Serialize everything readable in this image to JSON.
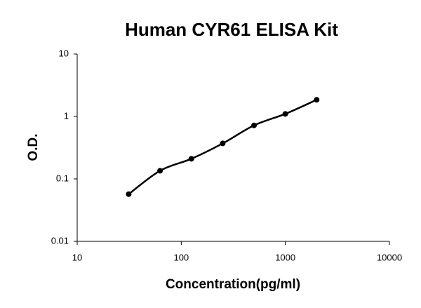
{
  "chart_data": {
    "type": "scatter",
    "title": "Human CYR61 ELISA Kit",
    "x_label": "Concentration(pg/ml)",
    "y_label": "O.D.",
    "x": [
      31.25,
      62.5,
      125,
      250,
      500,
      1000,
      2000
    ],
    "values": [
      0.057,
      0.135,
      0.21,
      0.37,
      0.72,
      1.1,
      1.85
    ],
    "color": "#000000",
    "xlim": [
      10,
      10000
    ],
    "xticks": [
      10,
      100,
      1000,
      10000
    ],
    "ylim": [
      0.01,
      10
    ],
    "yticks": [
      0.01,
      0.1,
      1,
      10
    ],
    "log_x": true,
    "log_y": true,
    "grid": false
  }
}
